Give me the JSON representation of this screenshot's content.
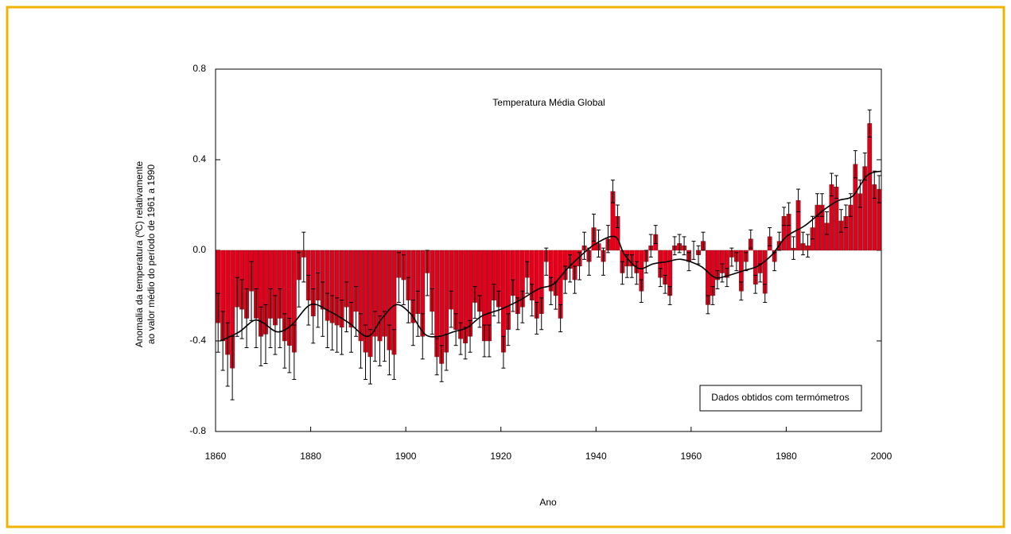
{
  "chart_data": {
    "type": "bar",
    "title": "Temperatura Média Global",
    "x_label": "Ano",
    "y_label": [
      "Anomalia da temperatura (ºC) relativamente",
      "ao valor médio do período de 1961 a 1990"
    ],
    "annotation": "Dados obtidos com termómetros",
    "color": "#e2001a",
    "xlim": [
      1860,
      2000
    ],
    "xticks": [
      1860,
      1880,
      1900,
      1920,
      1940,
      1960,
      1980,
      2000
    ],
    "ylim": [
      -0.8,
      0.8
    ],
    "yticks": [
      -0.8,
      -0.4,
      {
        "value": 0,
        "label": "0.0"
      },
      0.4,
      0.8
    ],
    "x": [
      1861,
      1862,
      1863,
      1864,
      1865,
      1866,
      1867,
      1868,
      1869,
      1870,
      1871,
      1872,
      1873,
      1874,
      1875,
      1876,
      1877,
      1878,
      1879,
      1880,
      1881,
      1882,
      1883,
      1884,
      1885,
      1886,
      1887,
      1888,
      1889,
      1890,
      1891,
      1892,
      1893,
      1894,
      1895,
      1896,
      1897,
      1898,
      1899,
      1900,
      1901,
      1902,
      1903,
      1904,
      1905,
      1906,
      1907,
      1908,
      1909,
      1910,
      1911,
      1912,
      1913,
      1914,
      1915,
      1916,
      1917,
      1918,
      1919,
      1920,
      1921,
      1922,
      1923,
      1924,
      1925,
      1926,
      1927,
      1928,
      1929,
      1930,
      1931,
      1932,
      1933,
      1934,
      1935,
      1936,
      1937,
      1938,
      1939,
      1940,
      1941,
      1942,
      1943,
      1944,
      1945,
      1946,
      1947,
      1948,
      1949,
      1950,
      1951,
      1952,
      1953,
      1954,
      1955,
      1956,
      1957,
      1958,
      1959,
      1960,
      1961,
      1962,
      1963,
      1964,
      1965,
      1966,
      1967,
      1968,
      1969,
      1970,
      1971,
      1972,
      1973,
      1974,
      1975,
      1976,
      1977,
      1978,
      1979,
      1980,
      1981,
      1982,
      1983,
      1984,
      1985,
      1986,
      1987,
      1988,
      1989,
      1990,
      1991,
      1992,
      1993,
      1994,
      1995,
      1996,
      1997,
      1998,
      1999,
      2000
    ],
    "values": [
      -0.32,
      -0.4,
      -0.46,
      -0.52,
      -0.25,
      -0.26,
      -0.3,
      -0.18,
      -0.3,
      -0.38,
      -0.37,
      -0.3,
      -0.33,
      -0.3,
      -0.4,
      -0.42,
      -0.45,
      -0.13,
      -0.03,
      -0.22,
      -0.29,
      -0.22,
      -0.26,
      -0.31,
      -0.32,
      -0.33,
      -0.34,
      -0.25,
      -0.34,
      -0.27,
      -0.4,
      -0.45,
      -0.47,
      -0.38,
      -0.4,
      -0.38,
      -0.44,
      -0.46,
      -0.12,
      -0.13,
      -0.22,
      -0.32,
      -0.28,
      -0.38,
      -0.1,
      -0.27,
      -0.47,
      -0.5,
      -0.45,
      -0.26,
      -0.35,
      -0.39,
      -0.41,
      -0.38,
      -0.23,
      -0.27,
      -0.4,
      -0.4,
      -0.22,
      -0.25,
      -0.45,
      -0.35,
      -0.2,
      -0.28,
      -0.25,
      -0.12,
      -0.22,
      -0.3,
      -0.28,
      -0.05,
      -0.18,
      -0.2,
      -0.3,
      -0.13,
      -0.08,
      -0.13,
      -0.07,
      0.02,
      -0.05,
      0.1,
      0.03,
      -0.05,
      0.05,
      0.26,
      0.15,
      -0.1,
      -0.07,
      -0.07,
      -0.1,
      -0.18,
      -0.05,
      0.02,
      0.07,
      -0.12,
      -0.15,
      -0.2,
      0.02,
      0.03,
      0.02,
      -0.05,
      0.0,
      -0.02,
      0.04,
      -0.24,
      -0.2,
      -0.13,
      -0.1,
      -0.12,
      -0.03,
      -0.05,
      -0.18,
      -0.05,
      0.05,
      -0.15,
      -0.1,
      -0.19,
      0.06,
      -0.05,
      0.04,
      0.15,
      0.16,
      0.01,
      0.22,
      0.03,
      0.02,
      0.1,
      0.2,
      0.2,
      0.12,
      0.29,
      0.28,
      0.13,
      0.15,
      0.2,
      0.38,
      0.25,
      0.37,
      0.56,
      0.29,
      0.27
    ],
    "errors": [
      0.13,
      0.13,
      0.14,
      0.14,
      0.13,
      0.13,
      0.13,
      0.13,
      0.13,
      0.13,
      0.13,
      0.13,
      0.13,
      0.13,
      0.12,
      0.12,
      0.12,
      0.12,
      0.11,
      0.11,
      0.12,
      0.12,
      0.12,
      0.12,
      0.12,
      0.12,
      0.12,
      0.11,
      0.11,
      0.11,
      0.12,
      0.12,
      0.12,
      0.11,
      0.11,
      0.11,
      0.11,
      0.11,
      0.11,
      0.11,
      0.1,
      0.1,
      0.1,
      0.1,
      0.1,
      0.1,
      0.08,
      0.08,
      0.08,
      0.08,
      0.07,
      0.07,
      0.07,
      0.07,
      0.07,
      0.07,
      0.07,
      0.07,
      0.07,
      0.07,
      0.07,
      0.07,
      0.07,
      0.07,
      0.07,
      0.07,
      0.07,
      0.07,
      0.07,
      0.06,
      0.06,
      0.06,
      0.06,
      0.06,
      0.06,
      0.06,
      0.06,
      0.06,
      0.06,
      0.06,
      0.06,
      0.06,
      0.06,
      0.05,
      0.05,
      0.05,
      0.05,
      0.05,
      0.05,
      0.05,
      0.05,
      0.05,
      0.04,
      0.04,
      0.04,
      0.04,
      0.04,
      0.04,
      0.04,
      0.04,
      0.04,
      0.04,
      0.04,
      0.04,
      0.04,
      0.04,
      0.04,
      0.04,
      0.04,
      0.04,
      0.04,
      0.04,
      0.04,
      0.04,
      0.04,
      0.04,
      0.04,
      0.04,
      0.04,
      0.04,
      0.05,
      0.05,
      0.05,
      0.05,
      0.05,
      0.05,
      0.05,
      0.05,
      0.05,
      0.05,
      0.05,
      0.05,
      0.05,
      0.05,
      0.06,
      0.06,
      0.06,
      0.06,
      0.06,
      0.06
    ],
    "trend": {
      "color": "#000000",
      "x": [
        1861,
        1865,
        1868,
        1870,
        1873,
        1876,
        1880,
        1884,
        1888,
        1892,
        1895,
        1898,
        1901,
        1904,
        1907,
        1910,
        1913,
        1916,
        1920,
        1924,
        1928,
        1931,
        1934,
        1937,
        1940,
        1944,
        1946,
        1949,
        1952,
        1955,
        1958,
        1962,
        1965,
        1968,
        1971,
        1974,
        1977,
        1980,
        1984,
        1988,
        1991,
        1994,
        1997,
        2000
      ],
      "values": [
        -0.4,
        -0.36,
        -0.31,
        -0.32,
        -0.36,
        -0.33,
        -0.24,
        -0.27,
        -0.32,
        -0.38,
        -0.3,
        -0.24,
        -0.28,
        -0.37,
        -0.38,
        -0.36,
        -0.34,
        -0.29,
        -0.26,
        -0.22,
        -0.17,
        -0.15,
        -0.08,
        -0.02,
        0.03,
        0.06,
        -0.02,
        -0.08,
        -0.06,
        -0.05,
        -0.04,
        -0.07,
        -0.12,
        -0.11,
        -0.09,
        -0.07,
        -0.02,
        0.06,
        0.11,
        0.18,
        0.22,
        0.24,
        0.33,
        0.35
      ]
    }
  }
}
